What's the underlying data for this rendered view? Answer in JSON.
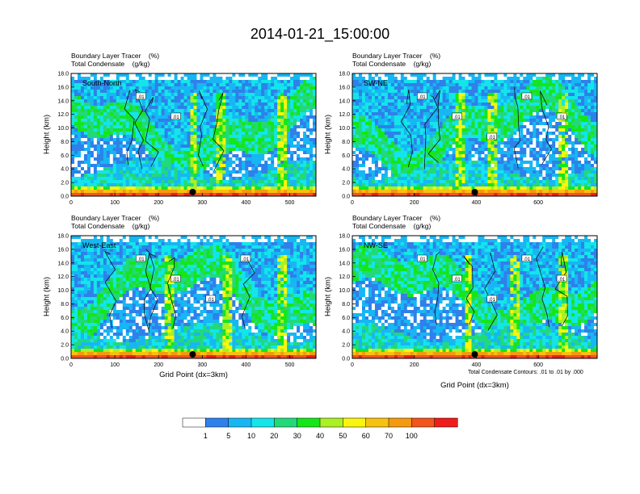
{
  "title": "2014-01-21_15:00:00",
  "chart_data": [
    {
      "type": "heatmap",
      "panel_label": "South-North",
      "title_lines": [
        "Boundary Layer Tracer    (%)",
        "Total Condensate    (g/kg)"
      ],
      "ylabel": "Height (km)",
      "xlabel": "",
      "xlim": [
        0,
        560
      ],
      "ylim": [
        0,
        18
      ],
      "xticks": [
        0,
        100,
        200,
        300,
        400,
        500
      ],
      "yticks": [
        "0.0",
        "2.0",
        "4.0",
        "6.0",
        "8.0",
        "10.0",
        "12.0",
        "14.0",
        "16.0",
        "18.0"
      ],
      "contour_labels": [
        ".01",
        ".01"
      ],
      "marker_x": 278
    },
    {
      "type": "heatmap",
      "panel_label": "SW-NE",
      "title_lines": [
        "Boundary Layer Tracer    (%)",
        "Total Condensate    (g/kg)"
      ],
      "ylabel": "Height (km)",
      "xlabel": "",
      "xlim": [
        0,
        790
      ],
      "ylim": [
        0,
        18
      ],
      "xticks": [
        0,
        200,
        400,
        600
      ],
      "yticks": [
        "0.0",
        "2.0",
        "4.0",
        "6.0",
        "8.0",
        "10.0",
        "12.0",
        "14.0",
        "16.0",
        "18.0"
      ],
      "contour_labels": [
        ".01",
        ".01",
        ".01",
        ".01",
        ".01"
      ],
      "marker_x": 395
    },
    {
      "type": "heatmap",
      "panel_label": "West-East",
      "title_lines": [
        "Boundary Layer Tracer    (%)",
        "Total Condensate    (g/kg)"
      ],
      "ylabel": "Height (km)",
      "xlabel": "Grid Point (dx=3km)",
      "xlim": [
        0,
        560
      ],
      "ylim": [
        0,
        18
      ],
      "xticks": [
        0,
        100,
        200,
        300,
        400,
        500
      ],
      "yticks": [
        "0.0",
        "2.0",
        "4.0",
        "6.0",
        "8.0",
        "10.0",
        "12.0",
        "14.0",
        "16.0",
        "18.0"
      ],
      "contour_labels": [
        ".01",
        ".01",
        ".01",
        ".01"
      ],
      "marker_x": 278
    },
    {
      "type": "heatmap",
      "panel_label": "NW-SE",
      "title_lines": [
        "Boundary Layer Tracer    (%)",
        "Total Condensate    (g/kg)"
      ],
      "ylabel": "Height (km)",
      "xlabel": "Grid Point (dx=3km)",
      "xlim": [
        0,
        790
      ],
      "ylim": [
        0,
        18
      ],
      "xticks": [
        0,
        200,
        400,
        600
      ],
      "yticks": [
        "0.0",
        "2.0",
        "4.0",
        "6.0",
        "8.0",
        "10.0",
        "12.0",
        "14.0",
        "16.0",
        "18.0"
      ],
      "contour_labels": [
        ".01",
        ".01",
        ".01",
        ".01",
        ".01"
      ],
      "marker_x": 395
    }
  ],
  "note": "Total Condensate Contours: .01 to .01 by .000",
  "colorbar": {
    "labels": [
      "1",
      "5",
      "10",
      "20",
      "30",
      "40",
      "50",
      "60",
      "70",
      "100"
    ],
    "colors": [
      "#ffffff",
      "#2f80ea",
      "#16b7f3",
      "#13e5ea",
      "#22d97a",
      "#15e61a",
      "#a9f025",
      "#f9f50e",
      "#f7c20f",
      "#f49a10",
      "#f2561c",
      "#ef1c1c"
    ]
  }
}
